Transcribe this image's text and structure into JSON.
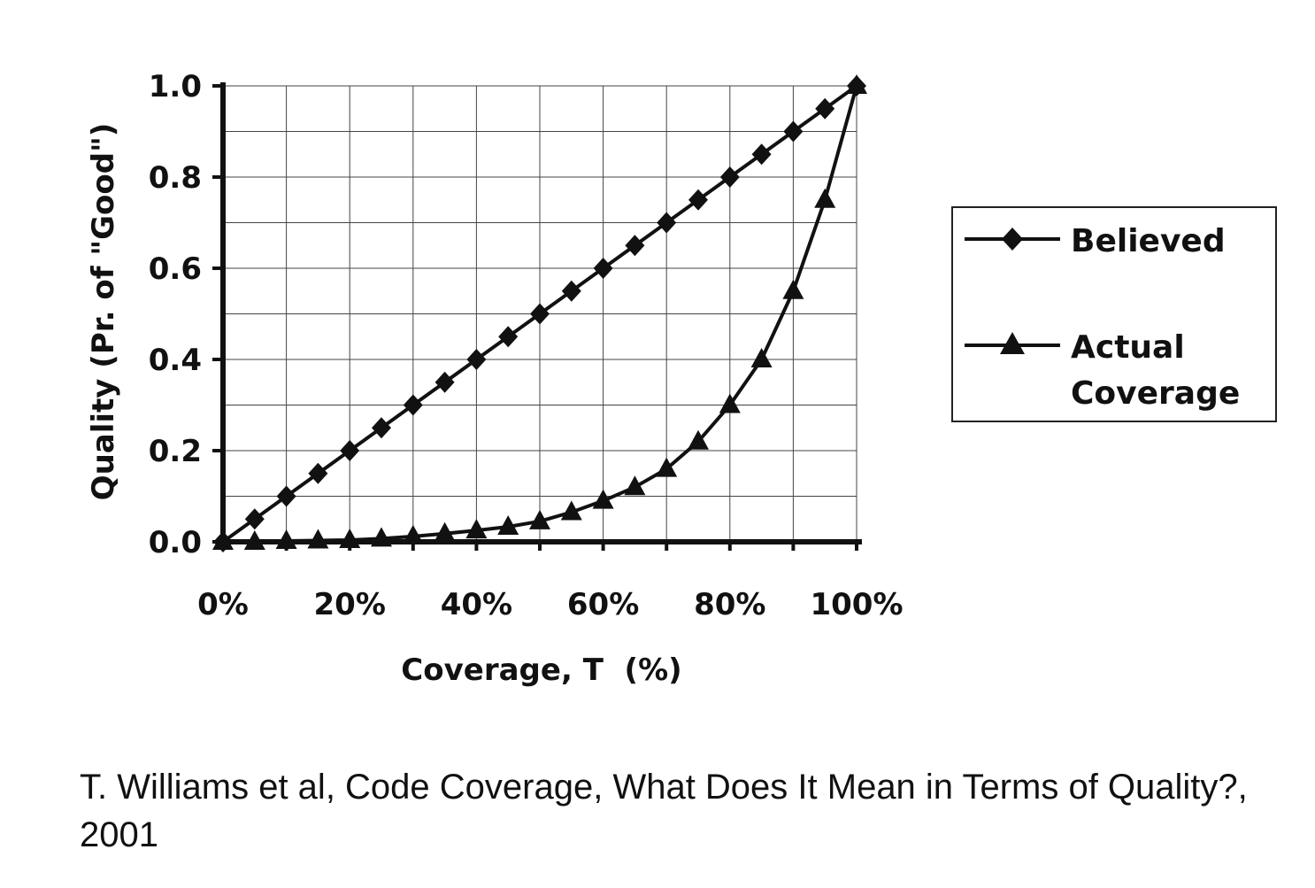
{
  "chart_data": {
    "type": "line",
    "ylabel": "Quality (Pr. of \"Good\")",
    "xlabel": "Coverage, T  (%)",
    "x": [
      0,
      5,
      10,
      15,
      20,
      25,
      30,
      35,
      40,
      45,
      50,
      55,
      60,
      65,
      70,
      75,
      80,
      85,
      90,
      95,
      100
    ],
    "xlim": [
      0,
      100
    ],
    "ylim": [
      0,
      1
    ],
    "x_ticks": [
      "0%",
      "20%",
      "40%",
      "60%",
      "80%",
      "100%"
    ],
    "y_ticks": [
      "0.0",
      "0.2",
      "0.4",
      "0.6",
      "0.8",
      "1.0"
    ],
    "grid": true,
    "legend_position": "right",
    "series": [
      {
        "name": "Believed",
        "marker": "diamond",
        "values": [
          0,
          0.05,
          0.1,
          0.15,
          0.2,
          0.25,
          0.3,
          0.35,
          0.4,
          0.45,
          0.5,
          0.55,
          0.6,
          0.65,
          0.7,
          0.75,
          0.8,
          0.85,
          0.9,
          0.95,
          1.0
        ]
      },
      {
        "name": "Actual Coverage",
        "legend_lines": [
          "Actual",
          "Coverage"
        ],
        "marker": "triangle",
        "values": [
          0,
          0.0,
          0.002,
          0.003,
          0.004,
          0.007,
          0.012,
          0.018,
          0.025,
          0.033,
          0.045,
          0.065,
          0.09,
          0.12,
          0.16,
          0.22,
          0.3,
          0.4,
          0.55,
          0.75,
          1.0
        ]
      }
    ]
  },
  "caption": "T. Williams et al, Code Coverage, What Does It Mean in Terms of Quality?, 2001"
}
